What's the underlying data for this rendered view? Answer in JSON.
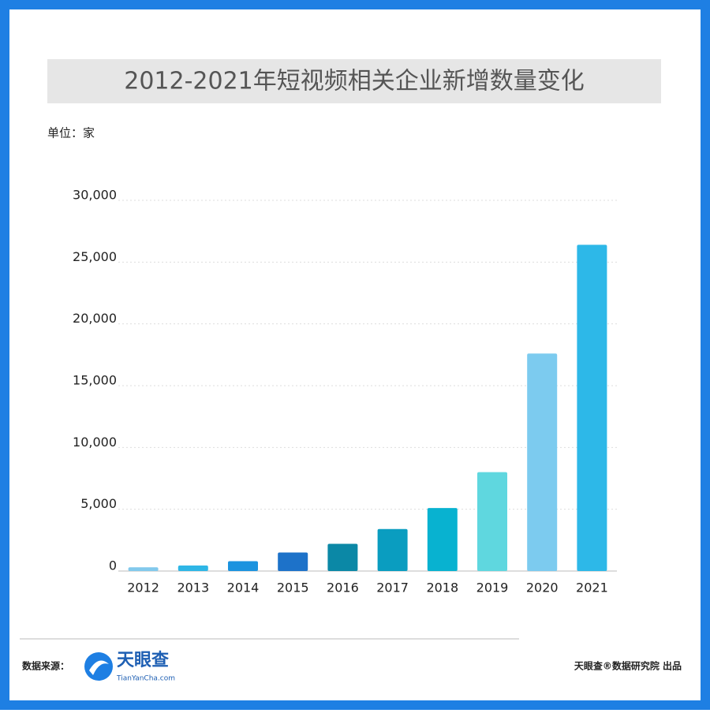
{
  "chart_data": {
    "type": "bar",
    "title": "2012-2021年短视频相关企业新增数量变化",
    "unit_label": "单位：家",
    "categories": [
      "2012",
      "2013",
      "2014",
      "2015",
      "2016",
      "2017",
      "2018",
      "2019",
      "2020",
      "2021"
    ],
    "values": [
      300,
      450,
      800,
      1500,
      2200,
      3400,
      5100,
      8000,
      17600,
      26400
    ],
    "colors": [
      "#82c9ec",
      "#2eb6e6",
      "#1b93df",
      "#1d72c9",
      "#0b88a6",
      "#0a9dc0",
      "#08b2d0",
      "#5fd7df",
      "#7ccbef",
      "#2db8e8"
    ],
    "ylim": [
      0,
      30000
    ],
    "yticks": [
      0,
      {
        "value": 5000,
        "label": "5,000"
      },
      {
        "value": 10000,
        "label": "10,000"
      },
      {
        "value": 15000,
        "label": "15,000"
      },
      {
        "value": 20000,
        "label": "20,000"
      },
      {
        "value": 25000,
        "label": "25,000"
      },
      {
        "value": 30000,
        "label": "30,000"
      }
    ],
    "grid": true
  },
  "footer": {
    "source_label": "数据来源：",
    "logo_name": "天眼查",
    "logo_url": "TianYanCha.com",
    "credit": "天眼查®数据研究院 出品"
  }
}
